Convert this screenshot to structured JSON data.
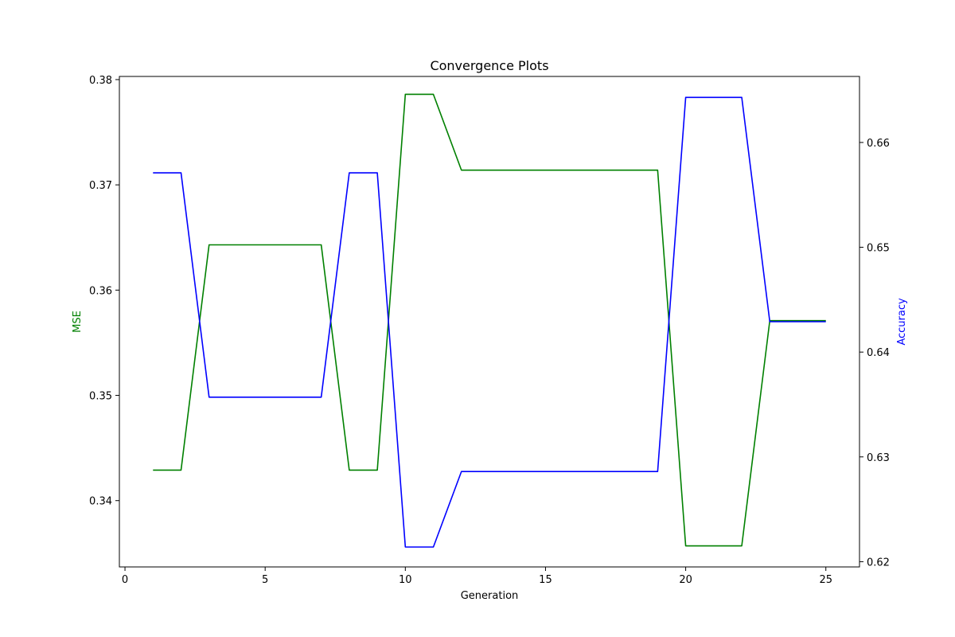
{
  "chart_data": {
    "type": "line",
    "title": "Convergence Plots",
    "xlabel": "Generation",
    "xlim": [
      -0.2,
      26.2
    ],
    "x_ticks": [
      0,
      5,
      10,
      15,
      20,
      25
    ],
    "left_axis": {
      "label": "MSE",
      "color": "#008000",
      "ylim": [
        0.3337,
        0.3803
      ],
      "ticks": [
        0.34,
        0.35,
        0.36,
        0.37,
        0.38
      ]
    },
    "right_axis": {
      "label": "Accuracy",
      "color": "#0000ff",
      "ylim": [
        0.6195,
        0.6663
      ],
      "ticks": [
        0.62,
        0.63,
        0.64,
        0.65,
        0.66
      ]
    },
    "x": [
      1,
      2,
      3,
      4,
      5,
      6,
      7,
      8,
      9,
      10,
      11,
      12,
      13,
      14,
      15,
      16,
      17,
      18,
      19,
      20,
      21,
      22,
      23,
      24,
      25
    ],
    "series": [
      {
        "name": "MSE",
        "axis": "left",
        "color": "#008000",
        "values": [
          0.3429,
          0.3429,
          0.3643,
          0.3643,
          0.3643,
          0.3643,
          0.3643,
          0.3429,
          0.3429,
          0.3786,
          0.3786,
          0.3714,
          0.3714,
          0.3714,
          0.3714,
          0.3714,
          0.3714,
          0.3714,
          0.3714,
          0.3357,
          0.3357,
          0.3357,
          0.3571,
          0.3571,
          0.3571
        ]
      },
      {
        "name": "Accuracy",
        "axis": "right",
        "color": "#0000ff",
        "values": [
          0.6571,
          0.6571,
          0.6357,
          0.6357,
          0.6357,
          0.6357,
          0.6357,
          0.6571,
          0.6571,
          0.6214,
          0.6214,
          0.6286,
          0.6286,
          0.6286,
          0.6286,
          0.6286,
          0.6286,
          0.6286,
          0.6286,
          0.6643,
          0.6643,
          0.6643,
          0.6429,
          0.6429,
          0.6429
        ]
      }
    ]
  }
}
